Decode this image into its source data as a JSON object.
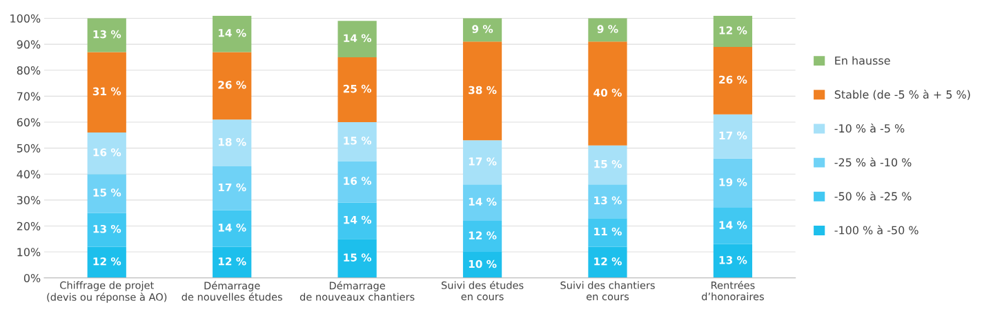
{
  "chart_data": {
    "type": "bar",
    "stacked": true,
    "categories": [
      "Chiffrage de projet\n(devis ou réponse à AO)",
      "Démarrage\nde nouvelles études",
      "Démarrage\nde nouveaux chantiers",
      "Suivi des études\nen cours",
      "Suivi des chantiers\nen cours",
      "Rentrées\nd’honoraires"
    ],
    "series": [
      {
        "name": "-100 % à -50 %",
        "color": "#1dbfec",
        "values": [
          12,
          12,
          15,
          10,
          12,
          13
        ],
        "value_labels": [
          "12 %",
          "12 %",
          "15 %",
          "10 %",
          "12 %",
          "13 %"
        ]
      },
      {
        "name": "-50 % à -25 %",
        "color": "#41c8f2",
        "values": [
          13,
          14,
          14,
          12,
          11,
          14
        ],
        "value_labels": [
          "13 %",
          "14 %",
          "14 %",
          "12 %",
          "11 %",
          "14 %"
        ]
      },
      {
        "name": "-25 % à -10 %",
        "color": "#6fd2f6",
        "values": [
          15,
          17,
          16,
          14,
          13,
          19
        ],
        "value_labels": [
          "15 %",
          "17 %",
          "16 %",
          "14 %",
          "13 %",
          "19 %"
        ]
      },
      {
        "name": "-10 % à -5 %",
        "color": "#a7e1f8",
        "values": [
          16,
          18,
          15,
          17,
          15,
          17
        ],
        "value_labels": [
          "16 %",
          "18 %",
          "15 %",
          "17 %",
          "15 %",
          "17 %"
        ]
      },
      {
        "name": "Stable (de -5 % à + 5 %)",
        "color": "#f08022",
        "values": [
          31,
          26,
          25,
          38,
          40,
          26
        ],
        "value_labels": [
          "31 %",
          "26 %",
          "25 %",
          "38 %",
          "40 %",
          "26 %"
        ]
      },
      {
        "name": "En hausse",
        "color": "#8fc073",
        "values": [
          13,
          14,
          14,
          9,
          9,
          12
        ],
        "value_labels": [
          "13 %",
          "14 %",
          "14 %",
          "9 %",
          "9 %",
          "12 %"
        ]
      }
    ],
    "ylim": [
      0,
      101
    ],
    "yticks": [
      {
        "value": 0,
        "label": "0%"
      },
      {
        "value": 10,
        "label": "10%"
      },
      {
        "value": 20,
        "label": "20%"
      },
      {
        "value": 30,
        "label": "30%"
      },
      {
        "value": 40,
        "label": "40%"
      },
      {
        "value": 50,
        "label": "50%"
      },
      {
        "value": 60,
        "label": "60%"
      },
      {
        "value": 70,
        "label": "70%"
      },
      {
        "value": 80,
        "label": "80%"
      },
      {
        "value": 90,
        "label": "90%"
      },
      {
        "value": 100,
        "label": "100%"
      }
    ],
    "grid": "y",
    "legend": "right"
  }
}
